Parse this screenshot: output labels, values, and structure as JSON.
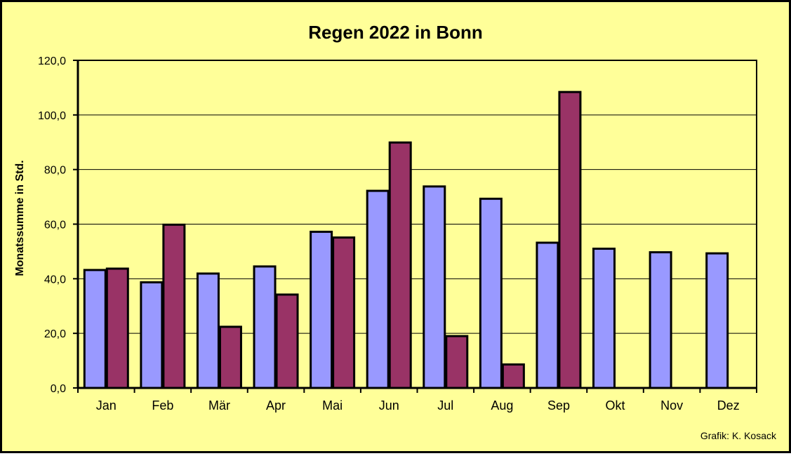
{
  "chart_data": {
    "type": "bar",
    "title": "Regen 2022 in Bonn",
    "xlabel": "",
    "ylabel": "Monatssumme in Std.",
    "ylim": [
      0,
      120
    ],
    "yticks": [
      "0,0",
      "20,0",
      "40,0",
      "60,0",
      "80,0",
      "100,0",
      "120,0"
    ],
    "categories": [
      "Jan",
      "Feb",
      "Mär",
      "Apr",
      "Mai",
      "Jun",
      "Jul",
      "Aug",
      "Sep",
      "Okt",
      "Nov",
      "Dez"
    ],
    "series": [
      {
        "color": "#9999ff",
        "values": [
          43.2,
          38.7,
          41.9,
          44.5,
          57.2,
          72.2,
          73.8,
          69.3,
          53.2,
          51.0,
          49.7,
          49.3
        ]
      },
      {
        "color": "#993366",
        "values": [
          43.7,
          59.8,
          22.4,
          34.2,
          55.1,
          89.9,
          19.0,
          8.6,
          108.4,
          null,
          null,
          null
        ]
      }
    ],
    "grid": true,
    "legend": "none"
  },
  "credit": "Grafik:  K. Kosack"
}
